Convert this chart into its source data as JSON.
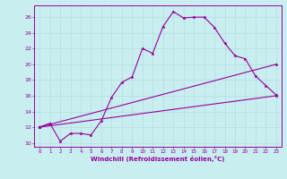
{
  "xlabel": "Windchill (Refroidissement éolien,°C)",
  "xlim": [
    -0.5,
    23.5
  ],
  "ylim": [
    9.5,
    27.5
  ],
  "yticks": [
    10,
    12,
    14,
    16,
    18,
    20,
    22,
    24,
    26
  ],
  "xticks": [
    0,
    1,
    2,
    3,
    4,
    5,
    6,
    7,
    8,
    9,
    10,
    11,
    12,
    13,
    14,
    15,
    16,
    17,
    18,
    19,
    20,
    21,
    22,
    23
  ],
  "background_color": "#c8eef0",
  "line_color": "#990099",
  "grid_color": "#b0dde0",
  "line1_x": [
    0,
    1,
    2,
    3,
    4,
    5,
    6,
    7,
    8,
    9,
    10,
    11,
    12,
    13,
    14,
    15,
    16,
    17,
    18,
    19,
    20,
    21,
    22,
    23
  ],
  "line1_y": [
    12,
    12.5,
    10.2,
    11.2,
    11.2,
    11.0,
    12.8,
    15.8,
    17.7,
    18.4,
    22.0,
    21.4,
    24.8,
    26.7,
    25.9,
    26.0,
    26.0,
    24.7,
    22.7,
    21.1,
    20.7,
    18.5,
    17.3,
    16.1
  ],
  "line2_x": [
    0,
    23
  ],
  "line2_y": [
    12,
    16.0
  ],
  "line3_x": [
    0,
    23
  ],
  "line3_y": [
    12,
    20.0
  ]
}
